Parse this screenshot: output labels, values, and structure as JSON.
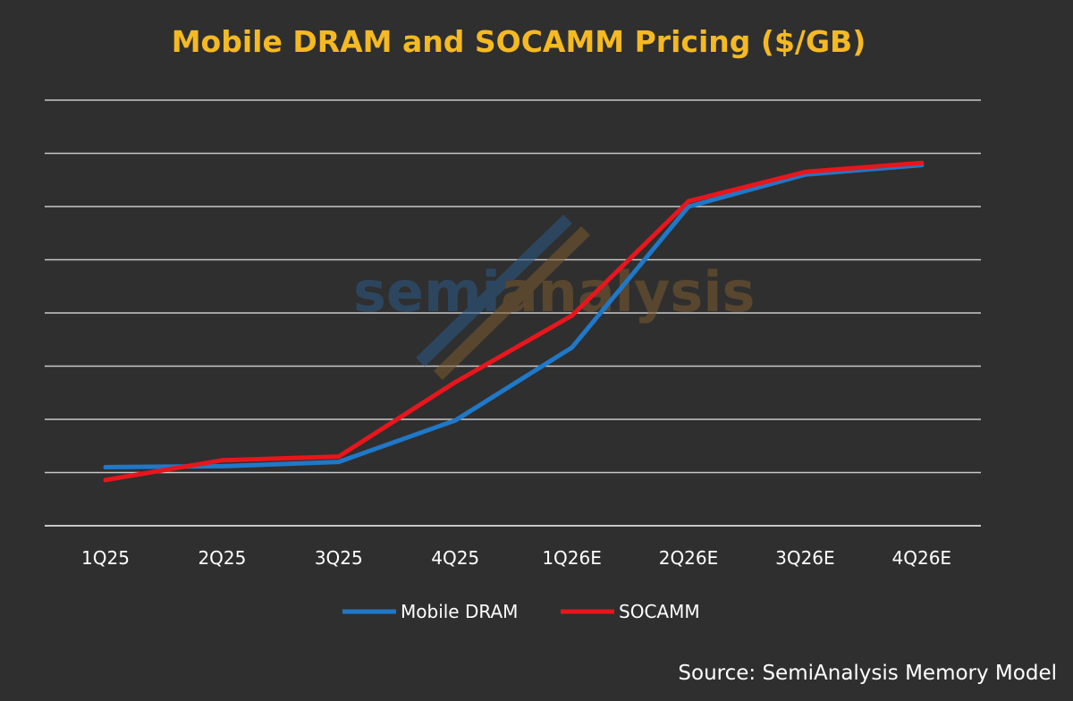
{
  "colors": {
    "background": "#2f2f2f",
    "title": "#f5b922",
    "grid": "#c8c8c8",
    "text": "#ffffff",
    "watermark_blue": "#2c5a88",
    "watermark_orange": "#7a5a2e"
  },
  "watermark": {
    "part1": "semi",
    "part2": "analysis"
  },
  "source": "Source: SemiAnalysis Memory Model",
  "chart_data": {
    "type": "line",
    "title": "Mobile DRAM and SOCAMM Pricing ($/GB)",
    "xlabel": "",
    "ylabel": "",
    "y_tick_labels_shown": false,
    "grid": true,
    "legend_position": "bottom",
    "categories": [
      "1Q25",
      "2Q25",
      "3Q25",
      "4Q25",
      "1Q26E",
      "2Q26E",
      "3Q26E",
      "4Q26E"
    ],
    "ylim": [
      0,
      8
    ],
    "series": [
      {
        "name": "Mobile DRAM",
        "color": "#1f78c8",
        "values": [
          1.1,
          1.12,
          1.2,
          1.98,
          3.35,
          6.0,
          6.6,
          6.78
        ]
      },
      {
        "name": "SOCAMM",
        "color": "#e8161c",
        "values": [
          0.86,
          1.23,
          1.3,
          2.7,
          3.95,
          6.1,
          6.65,
          6.82
        ]
      }
    ]
  }
}
